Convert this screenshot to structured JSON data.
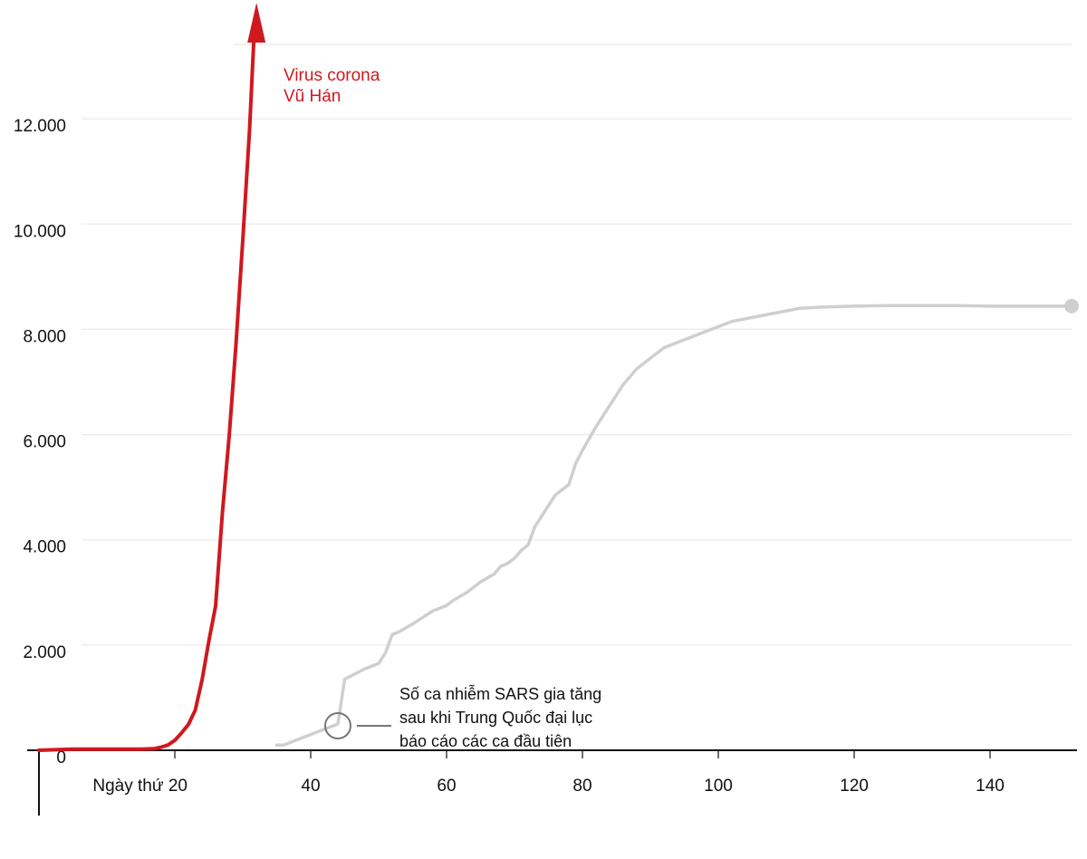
{
  "chart_data": {
    "type": "line",
    "xlabel": "",
    "ylabel": "",
    "xlim": [
      0,
      152
    ],
    "ylim": [
      0,
      14000
    ],
    "x_ticks": [
      {
        "value": 20,
        "label": "Ngày thứ 20"
      },
      {
        "value": 40,
        "label": "40"
      },
      {
        "value": 60,
        "label": "60"
      },
      {
        "value": 80,
        "label": "80"
      },
      {
        "value": 100,
        "label": "100"
      },
      {
        "value": 120,
        "label": "120"
      },
      {
        "value": 140,
        "label": "140"
      }
    ],
    "y_ticks": [
      {
        "value": 0,
        "label": "0"
      },
      {
        "value": 2000,
        "label": "2.000"
      },
      {
        "value": 4000,
        "label": "4.000"
      },
      {
        "value": 6000,
        "label": "6.000"
      },
      {
        "value": 8000,
        "label": "8.000"
      },
      {
        "value": 10000,
        "label": "10.000"
      },
      {
        "value": 12000,
        "label": "12.000"
      }
    ],
    "grid": true,
    "series": [
      {
        "name": "Virus corona\nVũ Hán",
        "color": "#d0181f",
        "arrow_at_end": true,
        "x": [
          0,
          5,
          10,
          15,
          17,
          18,
          19,
          20,
          21,
          22,
          23,
          24,
          25,
          26,
          27,
          28,
          29,
          30,
          31,
          32
        ],
        "y": [
          0,
          20,
          20,
          20,
          30,
          60,
          100,
          190,
          330,
          490,
          760,
          1330,
          2070,
          2740,
          4510,
          5970,
          7710,
          9690,
          11790,
          14500
        ]
      },
      {
        "name": "",
        "color": "#cfcfcf",
        "end_dot": true,
        "x": [
          35,
          36,
          40,
          43,
          44,
          45,
          48,
          50,
          51,
          52,
          53,
          55,
          58,
          60,
          61,
          63,
          65,
          67,
          68,
          69,
          70,
          71,
          72,
          73,
          74,
          75,
          76,
          77,
          78,
          79,
          80,
          82,
          84,
          86,
          88,
          90,
          92,
          94,
          96,
          98,
          100,
          101,
          102,
          104,
          106,
          108,
          110,
          112,
          115,
          120,
          125,
          130,
          135,
          140,
          145,
          152
        ],
        "y": [
          100,
          100,
          300,
          450,
          500,
          1350,
          1550,
          1650,
          1850,
          2200,
          2250,
          2400,
          2650,
          2750,
          2850,
          3000,
          3200,
          3350,
          3500,
          3550,
          3650,
          3800,
          3900,
          4250,
          4450,
          4650,
          4850,
          4950,
          5050,
          5450,
          5700,
          6150,
          6550,
          6950,
          7250,
          7450,
          7650,
          7750,
          7850,
          7950,
          8050,
          8100,
          8150,
          8200,
          8250,
          8300,
          8350,
          8400,
          8420,
          8440,
          8450,
          8450,
          8450,
          8440,
          8440,
          8440
        ]
      }
    ],
    "annotations": [
      {
        "text_lines": [
          "Số ca nhiễm SARS gia tăng",
          "sau khi Trung Quốc đại lục",
          "báo cáo các ca đầu tiên"
        ],
        "target_x": 44,
        "target_y": 500
      }
    ]
  }
}
